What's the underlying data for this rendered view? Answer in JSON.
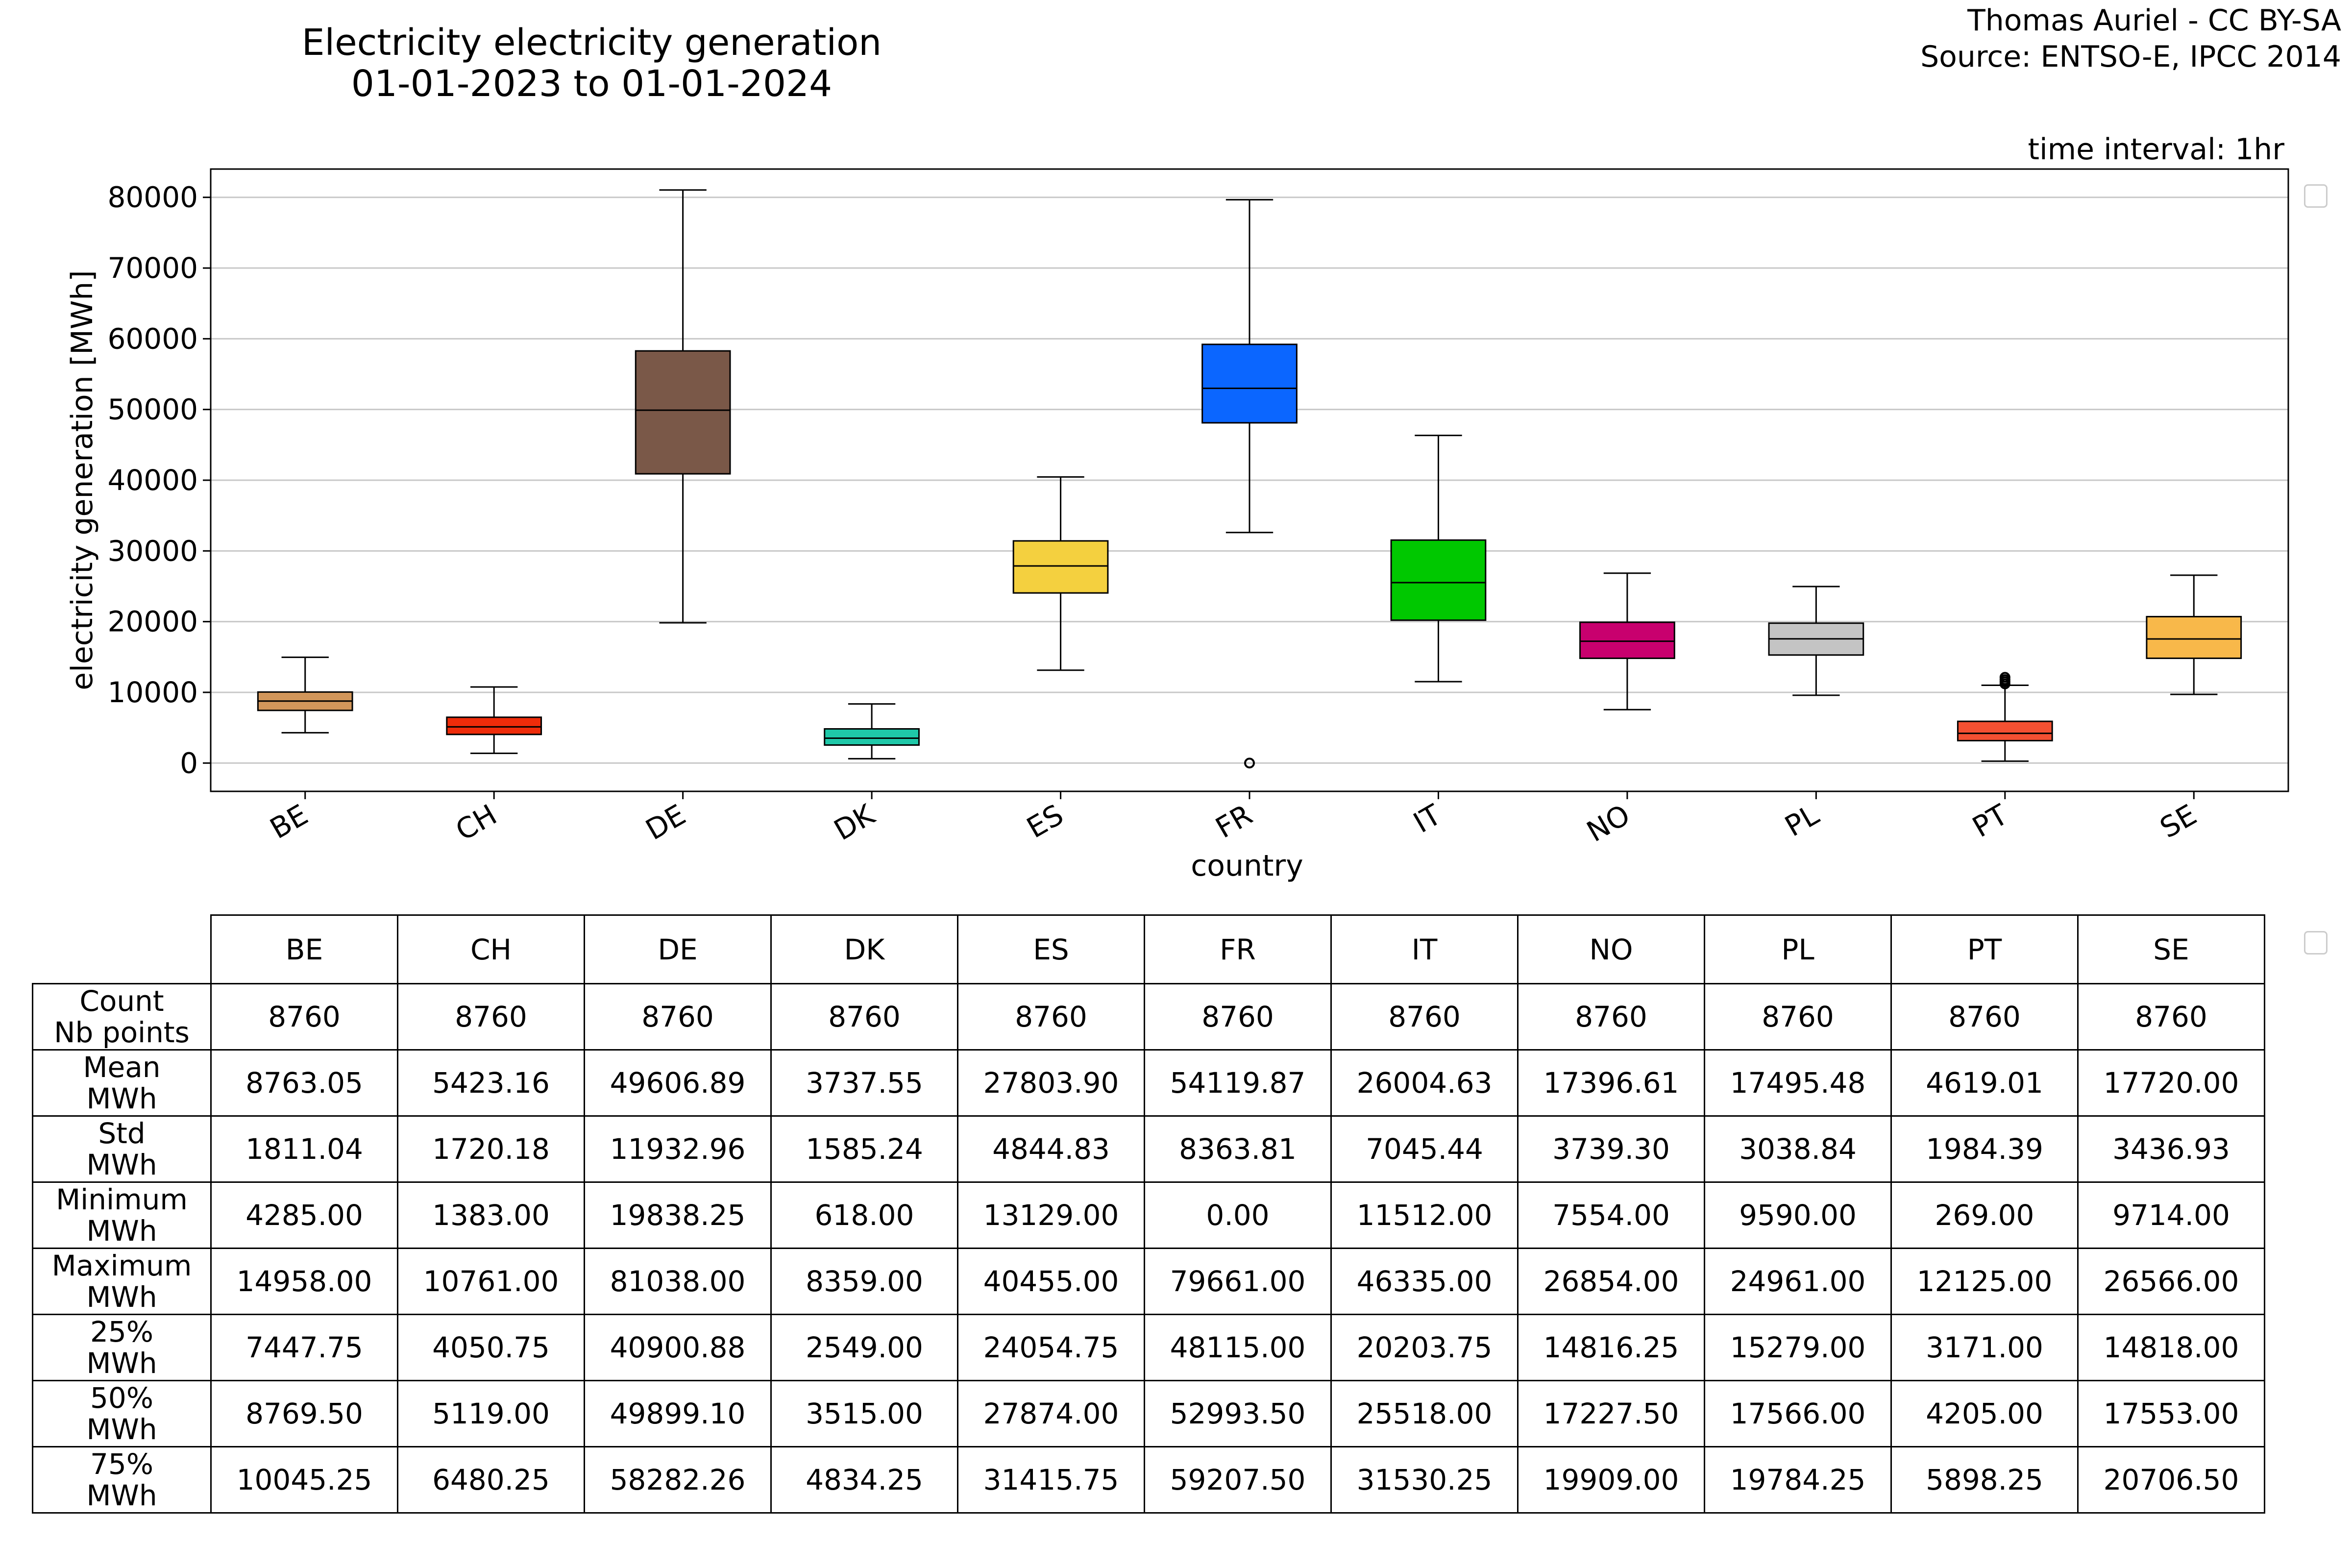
{
  "header": {
    "title_line1": "Electricity electricity generation",
    "title_line2": "01-01-2023 to 01-01-2024",
    "credit_line1": "Thomas Auriel - CC BY-SA",
    "credit_line2": "Source: ENTSO-E, IPCC 2014",
    "interval": "time interval: 1hr"
  },
  "chart_data": {
    "type": "box",
    "xlabel": "country",
    "ylabel": "electricity generation [MWh]",
    "ylim": [
      -4000,
      84000
    ],
    "yticks": [
      0,
      10000,
      20000,
      30000,
      40000,
      50000,
      60000,
      70000,
      80000
    ],
    "grid": "horizontal",
    "categories": [
      "BE",
      "CH",
      "DE",
      "DK",
      "ES",
      "FR",
      "IT",
      "NO",
      "PL",
      "PT",
      "SE"
    ],
    "boxes": [
      {
        "label": "BE",
        "whisker_low": 4285.0,
        "q1": 7447.75,
        "median": 8769.5,
        "q3": 10045.25,
        "whisker_high": 14958.0,
        "color": "#d2965a",
        "outliers": []
      },
      {
        "label": "CH",
        "whisker_low": 1383.0,
        "q1": 4050.75,
        "median": 5119.0,
        "q3": 6480.25,
        "whisker_high": 10761.0,
        "color": "#ee2c0a",
        "outliers": []
      },
      {
        "label": "DE",
        "whisker_low": 19838.25,
        "q1": 40900.88,
        "median": 49899.1,
        "q3": 58282.26,
        "whisker_high": 81038.0,
        "color": "#7a5848",
        "outliers": []
      },
      {
        "label": "DK",
        "whisker_low": 618.0,
        "q1": 2549.0,
        "median": 3515.0,
        "q3": 4834.25,
        "whisker_high": 8359.0,
        "color": "#1fc8a8",
        "outliers": []
      },
      {
        "label": "ES",
        "whisker_low": 13129.0,
        "q1": 24054.75,
        "median": 27874.0,
        "q3": 31415.75,
        "whisker_high": 40455.0,
        "color": "#f4d03f",
        "outliers": []
      },
      {
        "label": "FR",
        "whisker_low": 32600.0,
        "q1": 48115.0,
        "median": 52993.5,
        "q3": 59207.5,
        "whisker_high": 79661.0,
        "color": "#0b66ff",
        "outliers": [
          0
        ]
      },
      {
        "label": "IT",
        "whisker_low": 11512.0,
        "q1": 20203.75,
        "median": 25518.0,
        "q3": 31530.25,
        "whisker_high": 46335.0,
        "color": "#00c800",
        "outliers": []
      },
      {
        "label": "NO",
        "whisker_low": 7554.0,
        "q1": 14816.25,
        "median": 17227.5,
        "q3": 19909.0,
        "whisker_high": 26854.0,
        "color": "#c8006e",
        "outliers": []
      },
      {
        "label": "PL",
        "whisker_low": 9590.0,
        "q1": 15279.0,
        "median": 17566.0,
        "q3": 19784.25,
        "whisker_high": 24961.0,
        "color": "#c4c4c4",
        "outliers": []
      },
      {
        "label": "PT",
        "whisker_low": 269.0,
        "q1": 3171.0,
        "median": 4205.0,
        "q3": 5898.25,
        "whisker_high": 11000.0,
        "color": "#f45032",
        "outliers": [
          11200,
          11500,
          11800,
          12125
        ]
      },
      {
        "label": "SE",
        "whisker_low": 9714.0,
        "q1": 14818.0,
        "median": 17553.0,
        "q3": 20706.5,
        "whisker_high": 26566.0,
        "color": "#f8b84a",
        "outliers": []
      }
    ]
  },
  "table": {
    "columns": [
      "BE",
      "CH",
      "DE",
      "DK",
      "ES",
      "FR",
      "IT",
      "NO",
      "PL",
      "PT",
      "SE"
    ],
    "rows": [
      {
        "label1": "Count",
        "label2": "Nb points",
        "values": [
          "8760",
          "8760",
          "8760",
          "8760",
          "8760",
          "8760",
          "8760",
          "8760",
          "8760",
          "8760",
          "8760"
        ]
      },
      {
        "label1": "Mean",
        "label2": "MWh",
        "values": [
          "8763.05",
          "5423.16",
          "49606.89",
          "3737.55",
          "27803.90",
          "54119.87",
          "26004.63",
          "17396.61",
          "17495.48",
          "4619.01",
          "17720.00"
        ]
      },
      {
        "label1": "Std",
        "label2": "MWh",
        "values": [
          "1811.04",
          "1720.18",
          "11932.96",
          "1585.24",
          "4844.83",
          "8363.81",
          "7045.44",
          "3739.30",
          "3038.84",
          "1984.39",
          "3436.93"
        ]
      },
      {
        "label1": "Minimum",
        "label2": "MWh",
        "values": [
          "4285.00",
          "1383.00",
          "19838.25",
          "618.00",
          "13129.00",
          "0.00",
          "11512.00",
          "7554.00",
          "9590.00",
          "269.00",
          "9714.00"
        ]
      },
      {
        "label1": "Maximum",
        "label2": "MWh",
        "values": [
          "14958.00",
          "10761.00",
          "81038.00",
          "8359.00",
          "40455.00",
          "79661.00",
          "46335.00",
          "26854.00",
          "24961.00",
          "12125.00",
          "26566.00"
        ]
      },
      {
        "label1": "25%",
        "label2": "MWh",
        "values": [
          "7447.75",
          "4050.75",
          "40900.88",
          "2549.00",
          "24054.75",
          "48115.00",
          "20203.75",
          "14816.25",
          "15279.00",
          "3171.00",
          "14818.00"
        ]
      },
      {
        "label1": "50%",
        "label2": "MWh",
        "values": [
          "8769.50",
          "5119.00",
          "49899.10",
          "3515.00",
          "27874.00",
          "52993.50",
          "25518.00",
          "17227.50",
          "17566.00",
          "4205.00",
          "17553.00"
        ]
      },
      {
        "label1": "75%",
        "label2": "MWh",
        "values": [
          "10045.25",
          "6480.25",
          "58282.26",
          "4834.25",
          "31415.75",
          "59207.50",
          "31530.25",
          "19909.00",
          "19784.25",
          "5898.25",
          "20706.50"
        ]
      }
    ]
  }
}
